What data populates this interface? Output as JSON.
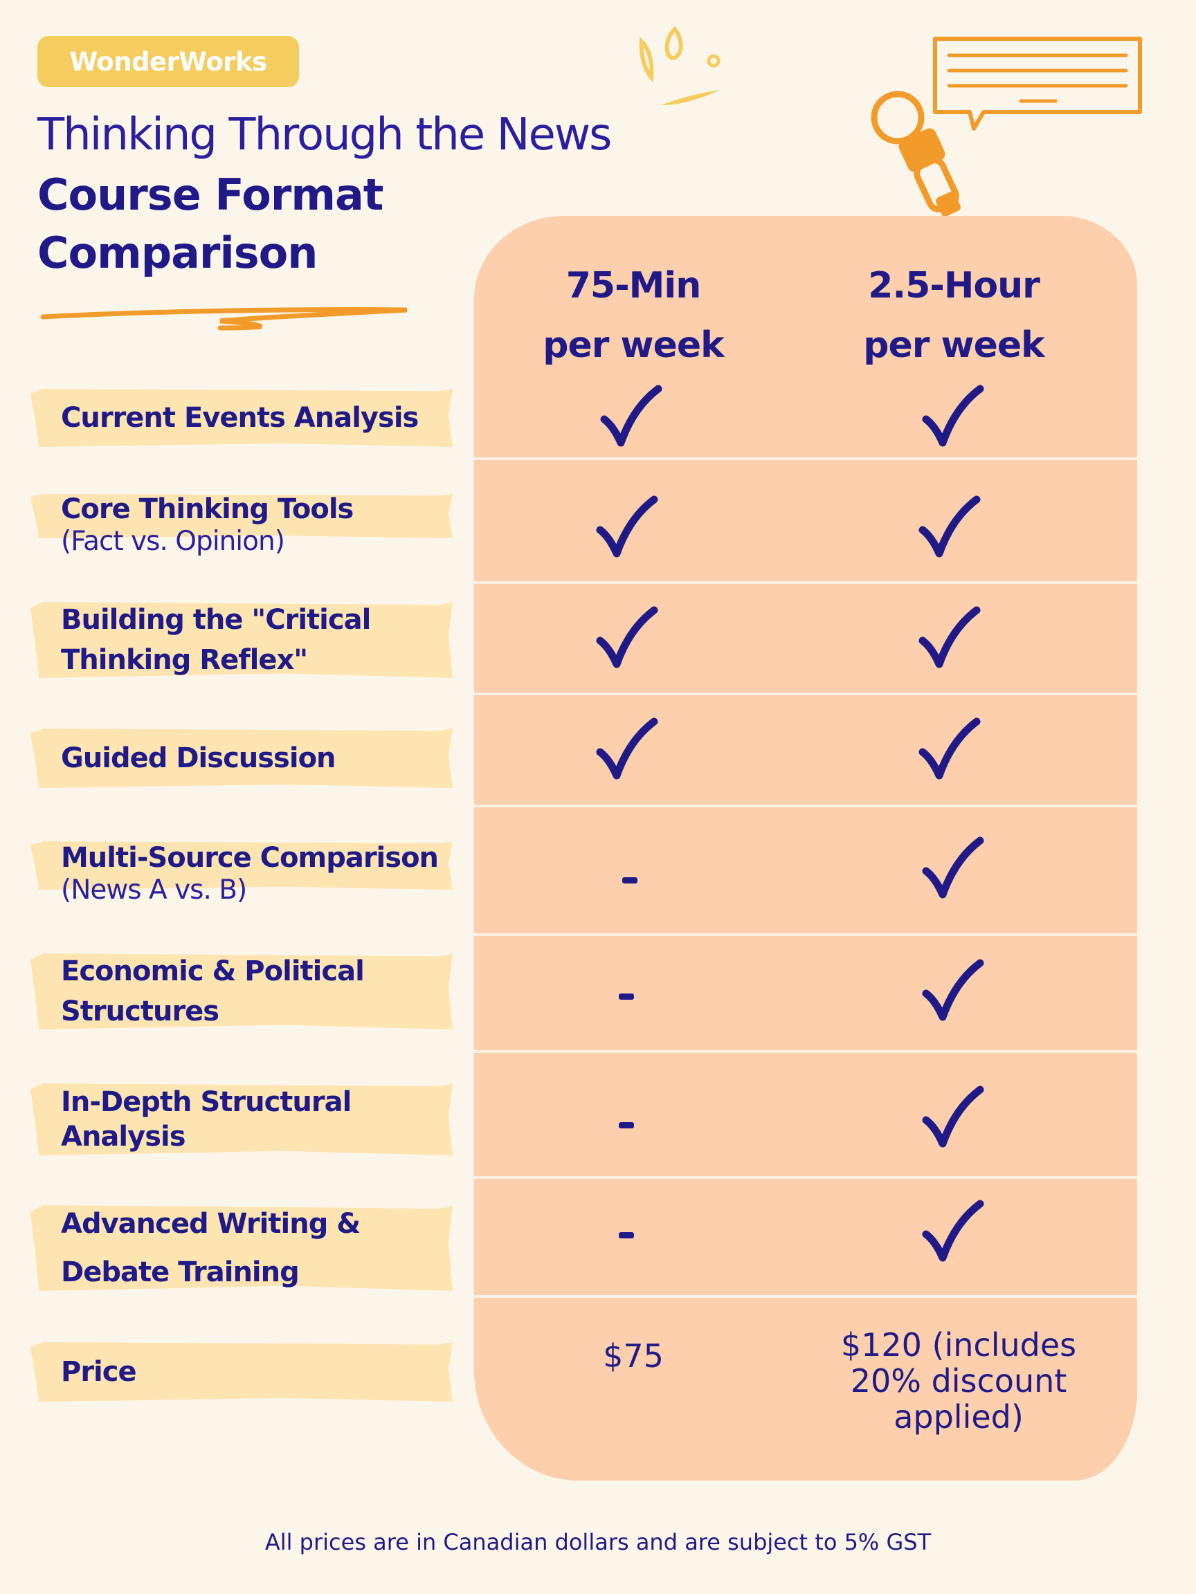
{
  "brand": "WonderWorks",
  "title": "Thinking Through the News",
  "subtitle": "Course Format Comparison",
  "columns": [
    {
      "line1": "75-Min",
      "line2": "per week"
    },
    {
      "line1": "2.5-Hour",
      "line2": "per week"
    }
  ],
  "rows": [
    {
      "label": "Current Events Analysis",
      "sub": "",
      "col1": "check",
      "col2": "check"
    },
    {
      "label": "Core Thinking Tools",
      "sub": "(Fact vs. Opinion)",
      "col1": "check",
      "col2": "check"
    },
    {
      "label": "Building the \"Critical Thinking Reflex\"",
      "sub": "",
      "col1": "check",
      "col2": "check"
    },
    {
      "label": "Guided Discussion",
      "sub": "",
      "col1": "check",
      "col2": "check"
    },
    {
      "label": "Multi-Source Comparison",
      "sub": "(News A vs. B)",
      "col1": "dash",
      "col2": "check"
    },
    {
      "label": "Economic & Political Structures",
      "sub": "",
      "col1": "dash",
      "col2": "check"
    },
    {
      "label": "In-Depth Structural Analysis",
      "sub": "",
      "col1": "dash",
      "col2": "check"
    },
    {
      "label": "Advanced Writing & Debate Training",
      "sub": "",
      "col1": "dash",
      "col2": "check"
    }
  ],
  "price": {
    "label": "Price",
    "col1": "$75",
    "col2": "$120 (includes 20% discount applied)"
  },
  "footer": "All prices are in Canadian dollars and are subject to 5% GST",
  "colors": {
    "navy": "#1f1a88",
    "peach": "#fdcfac",
    "highlight": "#fde4b0",
    "orange": "#f29b2a",
    "yellow": "#f5cd5f",
    "background": "#fcf6ea"
  }
}
